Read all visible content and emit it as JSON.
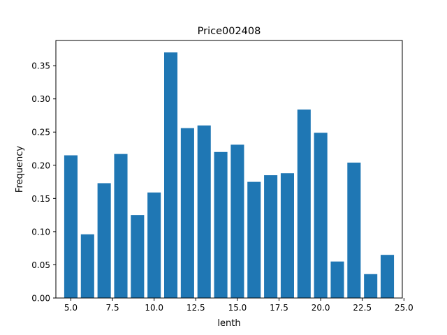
{
  "chart_data": {
    "type": "bar",
    "title": "Price002408",
    "xlabel": "lenth",
    "ylabel": "Frequency",
    "xlim": [
      4.1,
      24.9
    ],
    "ylim": [
      0,
      0.388
    ],
    "x": [
      5,
      6,
      7,
      8,
      9,
      10,
      11,
      12,
      13,
      14,
      15,
      16,
      17,
      18,
      19,
      20,
      21,
      22,
      23,
      24
    ],
    "values": [
      0.215,
      0.096,
      0.173,
      0.217,
      0.125,
      0.159,
      0.37,
      0.256,
      0.26,
      0.22,
      0.231,
      0.175,
      0.185,
      0.188,
      0.284,
      0.249,
      0.055,
      0.204,
      0.036,
      0.065
    ],
    "bar_width": 0.8,
    "bar_color": "#1f77b4",
    "grid": false,
    "x_ticks": [
      5.0,
      7.5,
      10.0,
      12.5,
      15.0,
      17.5,
      20.0,
      22.5,
      25.0
    ],
    "x_tick_labels": [
      "5.0",
      "7.5",
      "10.0",
      "12.5",
      "15.0",
      "17.5",
      "20.0",
      "22.5",
      "25.0"
    ],
    "y_ticks": [
      0.0,
      0.05,
      0.1,
      0.15,
      0.2,
      0.25,
      0.3,
      0.35
    ],
    "y_tick_labels": [
      "0.00",
      "0.05",
      "0.10",
      "0.15",
      "0.20",
      "0.25",
      "0.30",
      "0.35"
    ]
  }
}
